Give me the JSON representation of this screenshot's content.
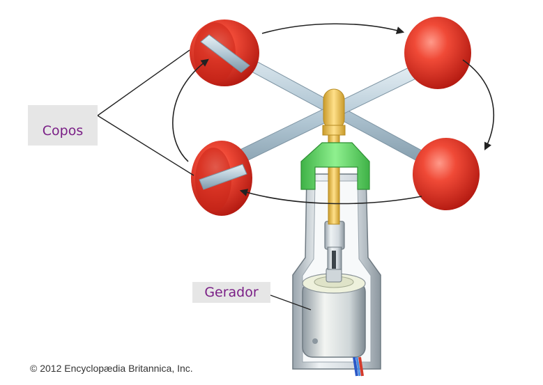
{
  "labels": {
    "cups": "Copos",
    "generator": "Gerador"
  },
  "credit": "© 2012 Encyclopædia Britannica, Inc.",
  "colors": {
    "cup_red": "#e8392b",
    "arm_steel": "#b8ccd8",
    "shaft_gold": "#f2c24e",
    "collar_green": "#55cc55",
    "label_text": "#7a1f86",
    "label_bg": "#e6e6e6"
  }
}
